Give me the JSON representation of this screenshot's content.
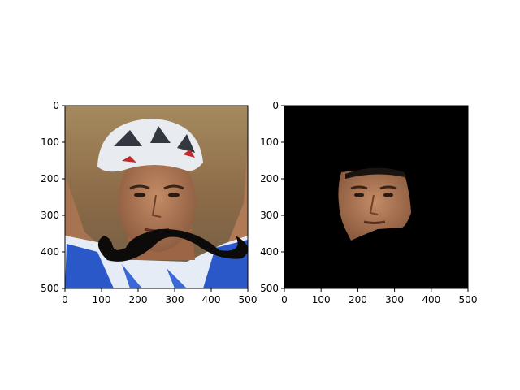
{
  "chart_data": [
    {
      "type": "image",
      "panel": "left",
      "content": "cyclist face photo with white-blue helmet and overlaid black mustache",
      "xlim": [
        0,
        500
      ],
      "ylim": [
        500,
        0
      ],
      "xticks": [
        0,
        100,
        200,
        300,
        400,
        500
      ],
      "yticks": [
        0,
        100,
        200,
        300,
        400,
        500
      ],
      "xtick_labels": [
        "0",
        "100",
        "200",
        "300",
        "400",
        "500"
      ],
      "ytick_labels": [
        "0",
        "100",
        "200",
        "300",
        "400",
        "500"
      ],
      "title": "",
      "xlabel": "",
      "ylabel": ""
    },
    {
      "type": "image",
      "panel": "right",
      "content": "black mask with only the face region visible",
      "xlim": [
        0,
        500
      ],
      "ylim": [
        500,
        0
      ],
      "xticks": [
        0,
        100,
        200,
        300,
        400,
        500
      ],
      "yticks": [
        0,
        100,
        200,
        300,
        400,
        500
      ],
      "xtick_labels": [
        "0",
        "100",
        "200",
        "300",
        "400",
        "500"
      ],
      "ytick_labels": [
        "0",
        "100",
        "200",
        "300",
        "400",
        "500"
      ],
      "title": "",
      "xlabel": "",
      "ylabel": ""
    }
  ],
  "colors": {
    "background": "#ffffff",
    "mask": "#000000",
    "jersey_blue": "#2a58c8",
    "helmet_white": "#e8ecf0",
    "skin": "#b57a55",
    "mustache": "#0d0a0a"
  }
}
